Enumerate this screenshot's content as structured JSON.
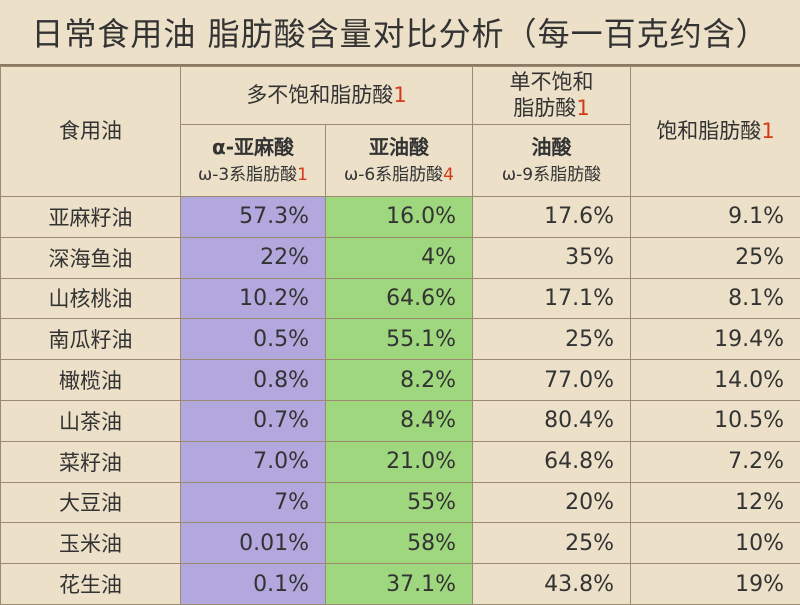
{
  "title": "日常食用油 脂肪酸含量对比分析（每一百克约含）",
  "headers": {
    "oil": "食用油",
    "poly": {
      "label": "多不饱和脂肪酸",
      "note": "1"
    },
    "mono": {
      "label1": "单不饱和",
      "label2": "脂肪酸",
      "note": "1"
    },
    "sat": {
      "label": "饱和脂肪酸",
      "note": "1"
    },
    "ala": {
      "label": "α-亚麻酸",
      "sub": "ω-3系脂肪酸",
      "note": "1"
    },
    "la": {
      "label": "亚油酸",
      "sub": "ω-6系脂肪酸",
      "note": "4"
    },
    "oa": {
      "label": "油酸",
      "sub": "ω-9系脂肪酸"
    }
  },
  "colors": {
    "ala": "#b3a8de",
    "la": "#9fd77f",
    "note": "#d43a1a"
  },
  "rows": [
    {
      "oil": "亚麻籽油",
      "ala": "57.3%",
      "la": "16.0%",
      "oa": "17.6%",
      "sat": "9.1%"
    },
    {
      "oil": "深海鱼油",
      "ala": "22%",
      "la": "4%",
      "oa": "35%",
      "sat": "25%"
    },
    {
      "oil": "山核桃油",
      "ala": "10.2%",
      "la": "64.6%",
      "oa": "17.1%",
      "sat": "8.1%"
    },
    {
      "oil": "南瓜籽油",
      "ala": "0.5%",
      "la": "55.1%",
      "oa": "25%",
      "sat": "19.4%"
    },
    {
      "oil": "橄榄油",
      "ala": "0.8%",
      "la": "8.2%",
      "oa": "77.0%",
      "sat": "14.0%"
    },
    {
      "oil": "山茶油",
      "ala": "0.7%",
      "la": "8.4%",
      "oa": "80.4%",
      "sat": "10.5%"
    },
    {
      "oil": "菜籽油",
      "ala": "7.0%",
      "la": "21.0%",
      "oa": "64.8%",
      "sat": "7.2%"
    },
    {
      "oil": "大豆油",
      "ala": "7%",
      "la": "55%",
      "oa": "20%",
      "sat": "12%"
    },
    {
      "oil": "玉米油",
      "ala": "0.01%",
      "la": "58%",
      "oa": "25%",
      "sat": "10%"
    },
    {
      "oil": "花生油",
      "ala": "0.1%",
      "la": "37.1%",
      "oa": "43.8%",
      "sat": "19%"
    }
  ]
}
